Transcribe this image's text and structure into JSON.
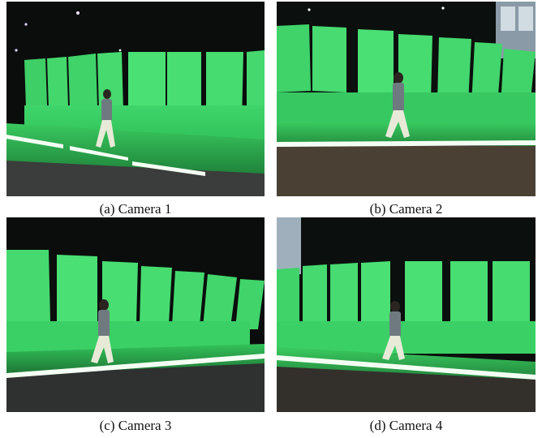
{
  "figure": {
    "panels": [
      {
        "caption": "(a) Camera 1"
      },
      {
        "caption": "(b) Camera 2"
      },
      {
        "caption": "(c) Camera 3"
      },
      {
        "caption": "(d) Camera 4"
      }
    ]
  },
  "colors": {
    "studio_dark": "#0b0f0d",
    "green_screen": "#3fdc6a",
    "green_floor": "#2fb44f",
    "light_strip": "#f4fff4",
    "walker_shirt": "#6f7a80",
    "walker_pants": "#e8ead8"
  }
}
